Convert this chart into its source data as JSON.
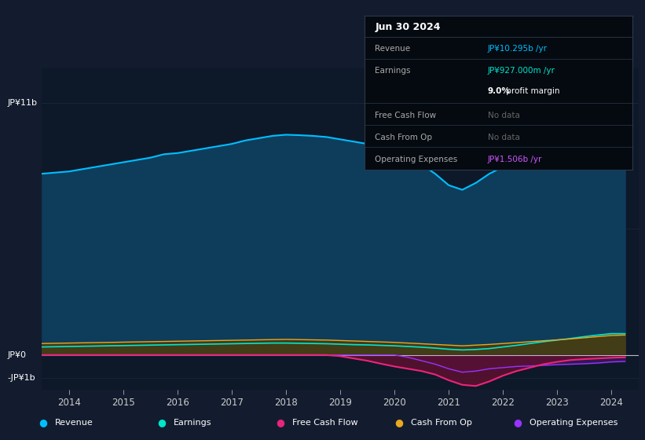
{
  "bg_color": "#131c2e",
  "plot_bg": "#0d1829",
  "years": [
    2013.5,
    2013.75,
    2014,
    2014.25,
    2014.5,
    2014.75,
    2015,
    2015.25,
    2015.5,
    2015.75,
    2016,
    2016.25,
    2016.5,
    2016.75,
    2017,
    2017.25,
    2017.5,
    2017.75,
    2018,
    2018.25,
    2018.5,
    2018.75,
    2019,
    2019.25,
    2019.5,
    2019.75,
    2020,
    2020.25,
    2020.5,
    2020.75,
    2021,
    2021.25,
    2021.5,
    2021.75,
    2022,
    2022.25,
    2022.5,
    2022.75,
    2023,
    2023.25,
    2023.5,
    2023.75,
    2024,
    2024.25
  ],
  "revenue": [
    7.9,
    7.95,
    8.0,
    8.1,
    8.2,
    8.3,
    8.4,
    8.5,
    8.6,
    8.75,
    8.8,
    8.9,
    9.0,
    9.1,
    9.2,
    9.35,
    9.45,
    9.55,
    9.6,
    9.58,
    9.55,
    9.5,
    9.4,
    9.3,
    9.2,
    9.1,
    8.9,
    8.6,
    8.3,
    7.9,
    7.4,
    7.2,
    7.5,
    7.9,
    8.2,
    8.5,
    8.7,
    8.9,
    9.1,
    9.3,
    9.5,
    9.8,
    10.1,
    10.3
  ],
  "earnings": [
    0.35,
    0.36,
    0.37,
    0.38,
    0.39,
    0.4,
    0.41,
    0.42,
    0.43,
    0.44,
    0.45,
    0.46,
    0.47,
    0.48,
    0.49,
    0.5,
    0.51,
    0.52,
    0.52,
    0.51,
    0.5,
    0.49,
    0.47,
    0.45,
    0.44,
    0.42,
    0.4,
    0.37,
    0.34,
    0.3,
    0.25,
    0.22,
    0.24,
    0.28,
    0.35,
    0.42,
    0.5,
    0.58,
    0.65,
    0.72,
    0.8,
    0.87,
    0.93,
    0.93
  ],
  "cash_from_op": [
    0.5,
    0.51,
    0.52,
    0.53,
    0.54,
    0.55,
    0.56,
    0.57,
    0.58,
    0.59,
    0.6,
    0.61,
    0.62,
    0.63,
    0.64,
    0.65,
    0.66,
    0.67,
    0.68,
    0.67,
    0.66,
    0.65,
    0.63,
    0.61,
    0.59,
    0.57,
    0.55,
    0.52,
    0.49,
    0.46,
    0.43,
    0.4,
    0.43,
    0.46,
    0.5,
    0.54,
    0.58,
    0.62,
    0.66,
    0.7,
    0.75,
    0.8,
    0.85,
    0.87
  ],
  "free_cash_flow": [
    0.0,
    0.0,
    0.0,
    0.0,
    0.0,
    0.0,
    0.0,
    0.0,
    0.0,
    0.0,
    0.0,
    0.0,
    0.0,
    0.0,
    0.0,
    0.0,
    0.0,
    0.0,
    0.0,
    0.0,
    0.0,
    0.0,
    -0.05,
    -0.15,
    -0.25,
    -0.38,
    -0.5,
    -0.6,
    -0.7,
    -0.85,
    -1.1,
    -1.3,
    -1.35,
    -1.15,
    -0.9,
    -0.7,
    -0.55,
    -0.4,
    -0.3,
    -0.22,
    -0.18,
    -0.15,
    -0.12,
    -0.1
  ],
  "op_expenses": [
    0.0,
    0.0,
    0.0,
    0.0,
    0.0,
    0.0,
    0.0,
    0.0,
    0.0,
    0.0,
    0.0,
    0.0,
    0.0,
    0.0,
    0.0,
    0.0,
    0.0,
    0.0,
    0.0,
    0.0,
    0.0,
    0.0,
    0.0,
    0.0,
    0.0,
    0.0,
    0.0,
    -0.1,
    -0.25,
    -0.4,
    -0.6,
    -0.75,
    -0.7,
    -0.6,
    -0.55,
    -0.5,
    -0.48,
    -0.45,
    -0.42,
    -0.4,
    -0.38,
    -0.35,
    -0.3,
    -0.28
  ],
  "ylim": [
    -1.5,
    12.5
  ],
  "y_top": 11,
  "y_mid": 5.5,
  "y_zero": 0,
  "y_neg": -1,
  "xlim_left": 2013.5,
  "xlim_right": 2024.5,
  "xticks": [
    2014,
    2015,
    2016,
    2017,
    2018,
    2019,
    2020,
    2021,
    2022,
    2023,
    2024
  ],
  "colors": {
    "revenue_line": "#00bfff",
    "revenue_fill": "#0e3d5c",
    "earnings_line": "#00e5cc",
    "earnings_fill": "#1a4a44",
    "fcf_line": "#e8257a",
    "fcf_fill_neg": "#5c1030",
    "cashop_line": "#e8a820",
    "cashop_fill": "#4a3a10",
    "opex_line": "#9933ff",
    "opex_fill": "#331a55",
    "gridline": "#1e2e42",
    "zeroline": "#cccccc",
    "text": "#ffffff",
    "axis_text": "#cccccc"
  },
  "info_box": {
    "date": "Jun 30 2024",
    "rows": [
      {
        "label": "Revenue",
        "value": "JP¥10.295b /yr",
        "value_color": "#00bfff",
        "sub": null
      },
      {
        "label": "Earnings",
        "value": "JP¥927.000m /yr",
        "value_color": "#00e5cc",
        "sub": "9.0% profit margin"
      },
      {
        "label": "Free Cash Flow",
        "value": "No data",
        "value_color": "#666666",
        "sub": null
      },
      {
        "label": "Cash From Op",
        "value": "No data",
        "value_color": "#666666",
        "sub": null
      },
      {
        "label": "Operating Expenses",
        "value": "JP¥1.506b /yr",
        "value_color": "#cc55ff",
        "sub": null
      }
    ]
  },
  "legend": [
    {
      "label": "Revenue",
      "color": "#00bfff"
    },
    {
      "label": "Earnings",
      "color": "#00e5cc"
    },
    {
      "label": "Free Cash Flow",
      "color": "#e8257a"
    },
    {
      "label": "Cash From Op",
      "color": "#e8a820"
    },
    {
      "label": "Operating Expenses",
      "color": "#9933ff"
    }
  ]
}
